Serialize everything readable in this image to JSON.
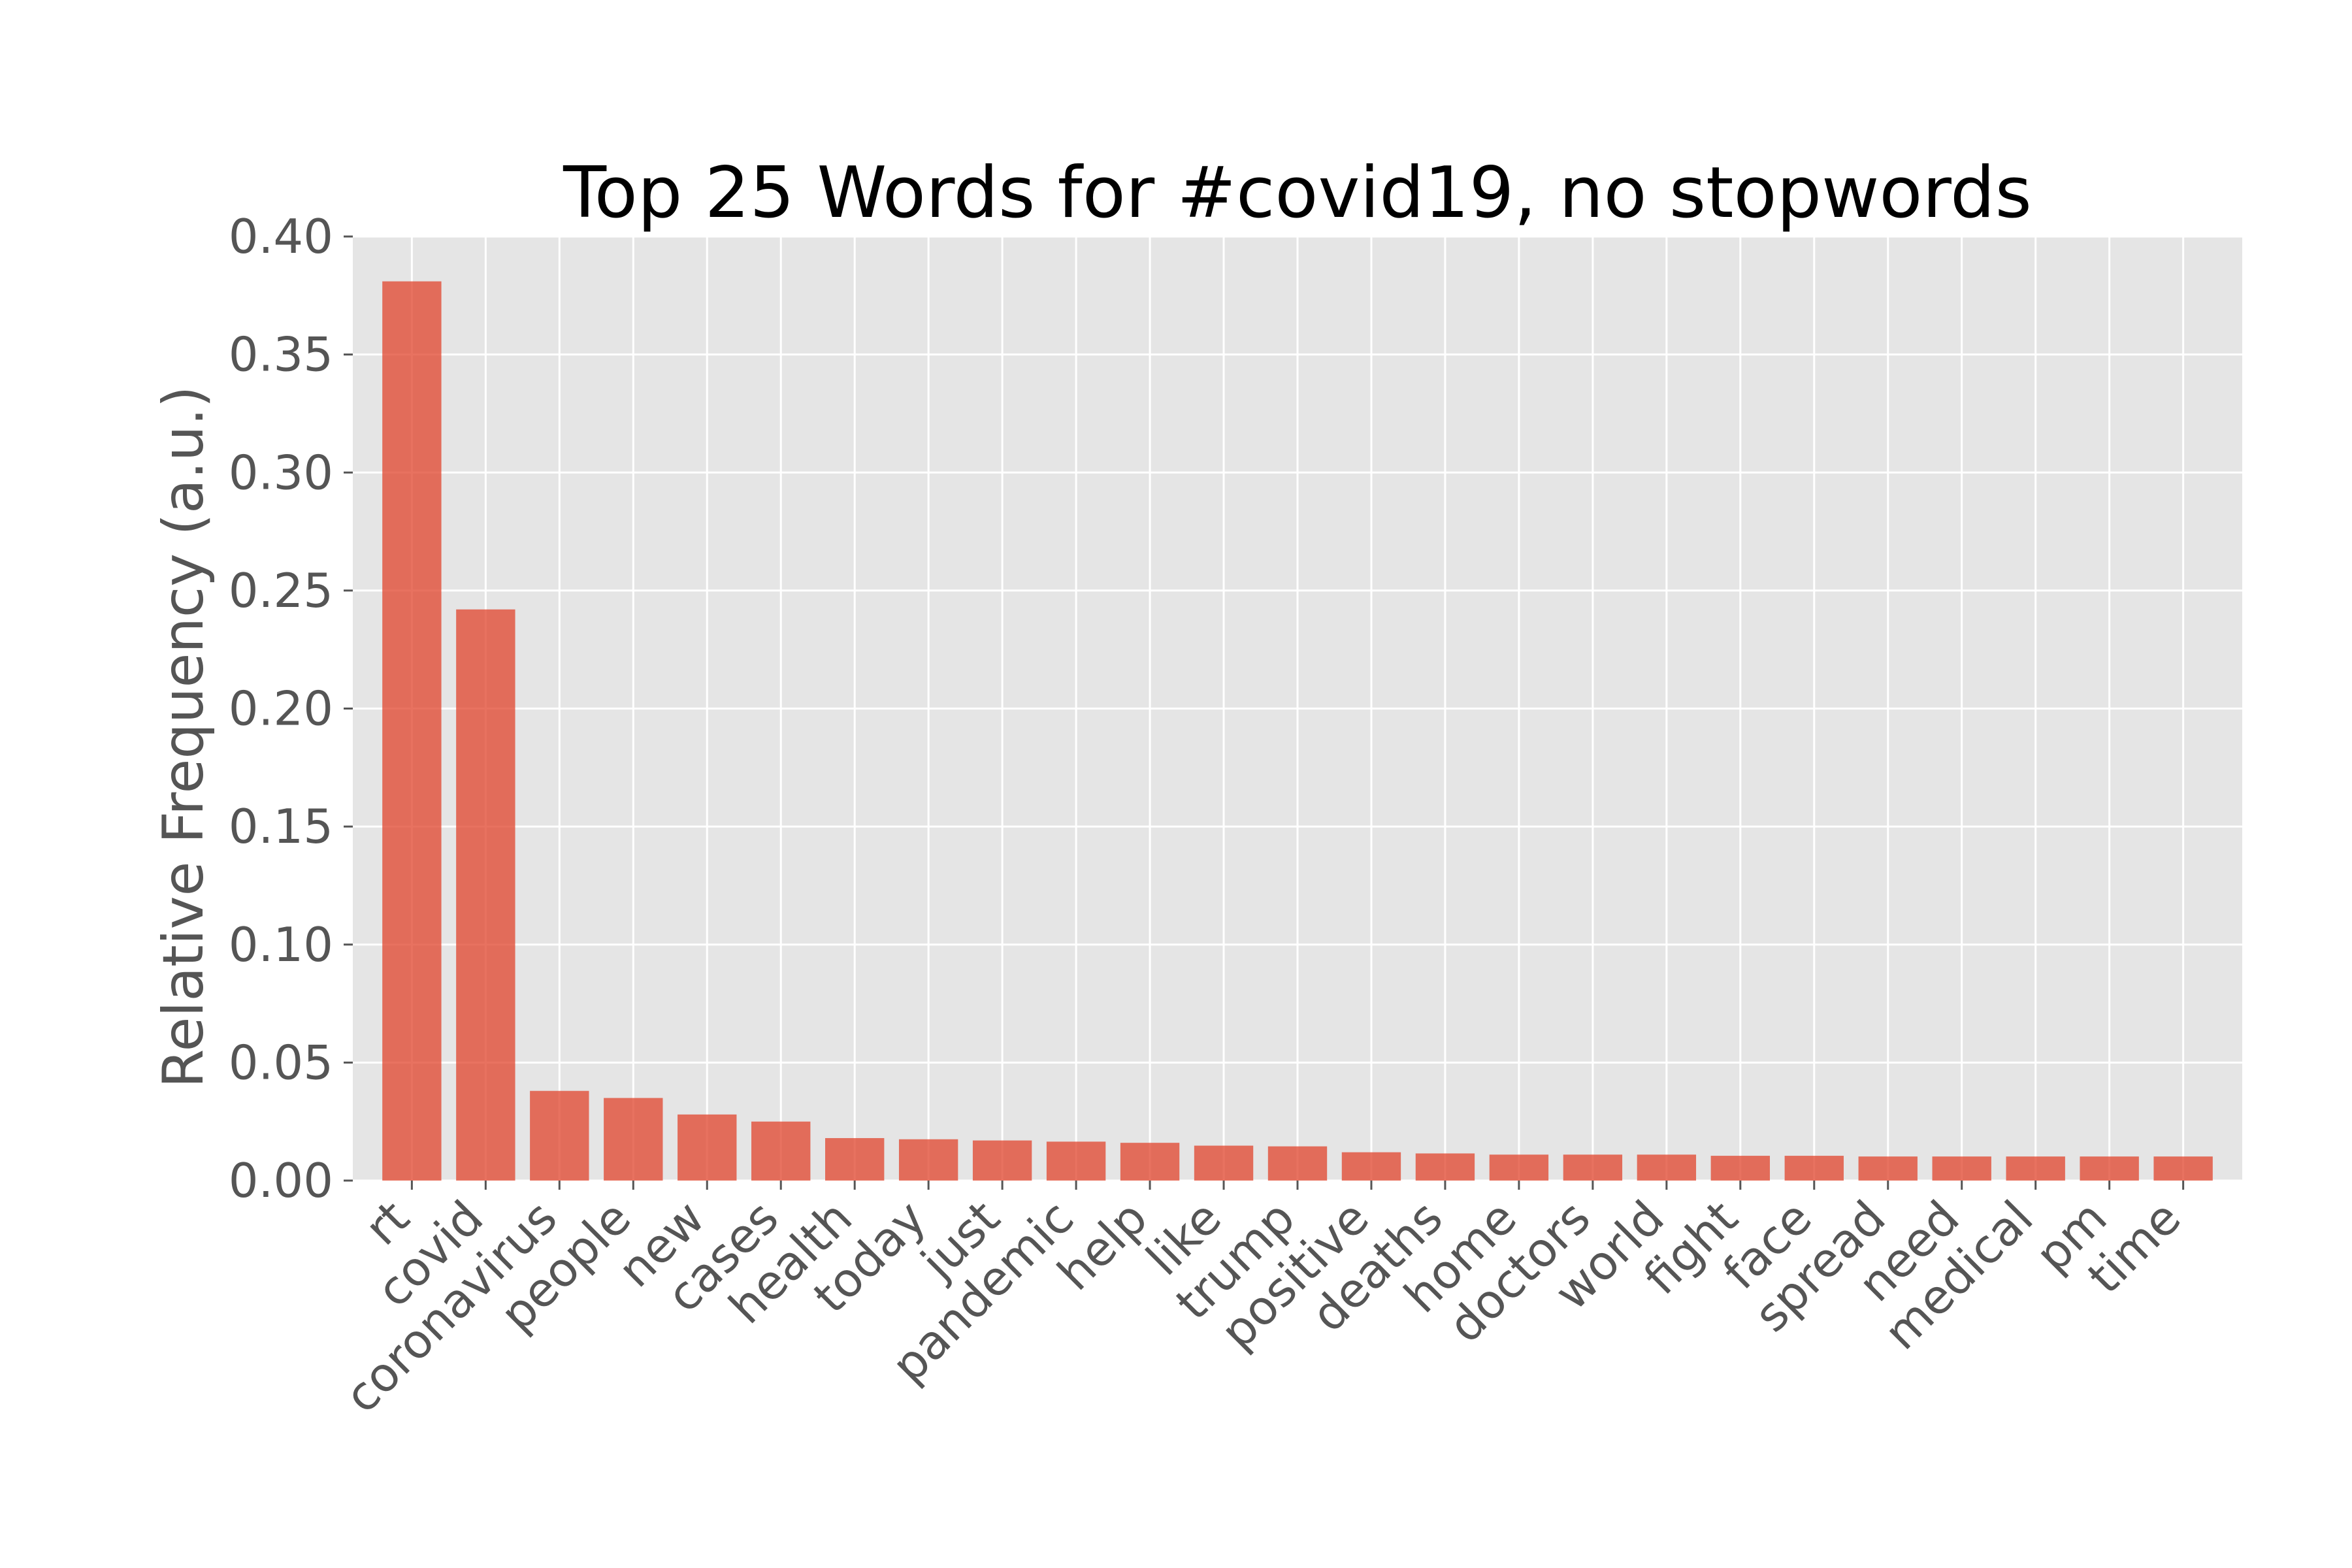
{
  "chart_data": {
    "type": "bar",
    "title": "Top 25 Words for #covid19, no stopwords",
    "xlabel": "",
    "ylabel": "Relative Frequency (a.u.)",
    "ylim": [
      0,
      0.4
    ],
    "yticks": [
      "0.00",
      "0.05",
      "0.10",
      "0.15",
      "0.20",
      "0.25",
      "0.30",
      "0.35",
      "0.40"
    ],
    "grid": true,
    "bar_color": "#E24A33",
    "background_color": "#E5E5E5",
    "categories": [
      "rt",
      "covid",
      "coronavirus",
      "people",
      "new",
      "cases",
      "health",
      "today",
      "just",
      "pandemic",
      "help",
      "like",
      "trump",
      "positive",
      "deaths",
      "home",
      "doctors",
      "world",
      "fight",
      "face",
      "spread",
      "need",
      "medical",
      "pm",
      "time"
    ],
    "values": [
      0.381,
      0.242,
      0.038,
      0.035,
      0.028,
      0.025,
      0.018,
      0.0175,
      0.017,
      0.0165,
      0.016,
      0.0148,
      0.0145,
      0.012,
      0.0115,
      0.011,
      0.011,
      0.011,
      0.0105,
      0.0105,
      0.0102,
      0.0102,
      0.0102,
      0.0102,
      0.0102
    ]
  }
}
